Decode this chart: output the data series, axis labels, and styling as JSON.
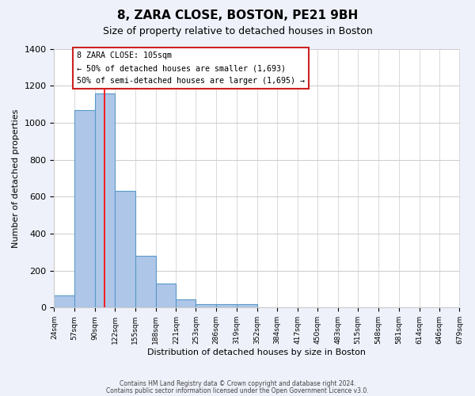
{
  "title": "8, ZARA CLOSE, BOSTON, PE21 9BH",
  "subtitle": "Size of property relative to detached houses in Boston",
  "xlabel": "Distribution of detached houses by size in Boston",
  "ylabel": "Number of detached properties",
  "bar_values": [
    65,
    1070,
    1160,
    630,
    280,
    130,
    45,
    20,
    18,
    18,
    0,
    0,
    0,
    0,
    0,
    0,
    0,
    0,
    0,
    0
  ],
  "bin_edges": [
    24,
    57,
    90,
    122,
    155,
    188,
    221,
    253,
    286,
    319,
    352,
    384,
    417,
    450,
    483,
    515,
    548,
    581,
    614,
    646,
    679
  ],
  "tick_labels": [
    "24sqm",
    "57sqm",
    "90sqm",
    "122sqm",
    "155sqm",
    "188sqm",
    "221sqm",
    "253sqm",
    "286sqm",
    "319sqm",
    "352sqm",
    "384sqm",
    "417sqm",
    "450sqm",
    "483sqm",
    "515sqm",
    "548sqm",
    "581sqm",
    "614sqm",
    "646sqm",
    "679sqm"
  ],
  "bar_color": "#aec6e8",
  "bar_edge_color": "#5a9ac8",
  "red_line_x": 105,
  "ylim": [
    0,
    1400
  ],
  "yticks": [
    0,
    200,
    400,
    600,
    800,
    1000,
    1200,
    1400
  ],
  "annotation_title": "8 ZARA CLOSE: 105sqm",
  "annotation_line1": "← 50% of detached houses are smaller (1,693)",
  "annotation_line2": "50% of semi-detached houses are larger (1,695) →",
  "footer1": "Contains HM Land Registry data © Crown copyright and database right 2024.",
  "footer2": "Contains public sector information licensed under the Open Government Licence v3.0.",
  "bg_color": "#eef1fa",
  "plot_bg_color": "#ffffff"
}
